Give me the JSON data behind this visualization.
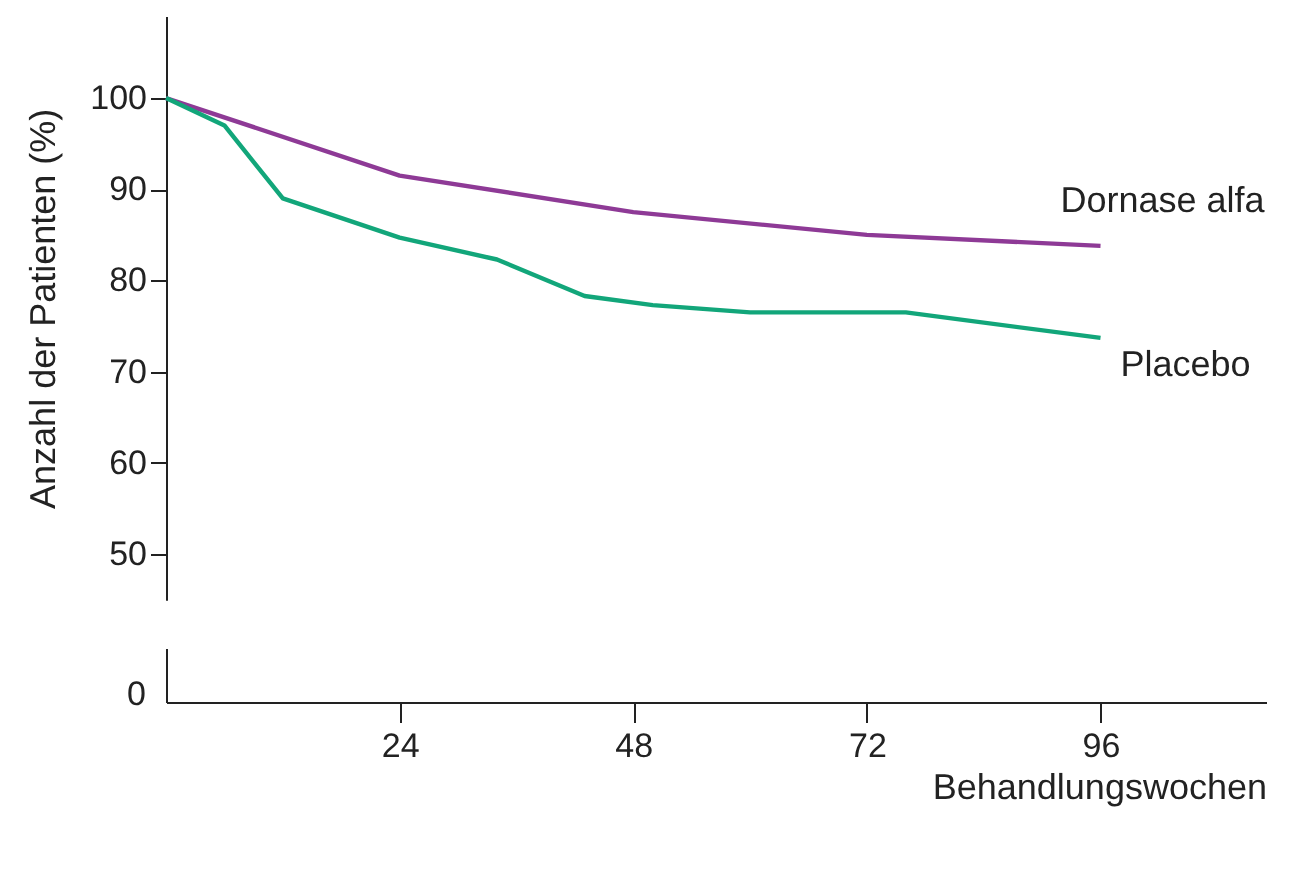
{
  "chart_data": {
    "type": "line",
    "ylabel": "Anzahl der Patienten (%)",
    "xlabel": "Behandlungswochen",
    "xlim": [
      0,
      113
    ],
    "ylim": [
      45,
      109
    ],
    "xticks": [
      24,
      48,
      72,
      96
    ],
    "yticks": [
      50,
      60,
      70,
      80,
      90,
      100
    ],
    "grid": false,
    "legend": false,
    "annotations": [
      "0"
    ],
    "series": [
      {
        "name": "Dornase alfa",
        "color": "#8e3a96",
        "x": [
          0,
          24,
          48,
          72,
          96
        ],
        "values": [
          100,
          91.5,
          87.5,
          85,
          83.8
        ]
      },
      {
        "name": "Placebo",
        "color": "#12a67a",
        "x": [
          0,
          6,
          12,
          24,
          34,
          43,
          50,
          60,
          76,
          96
        ],
        "values": [
          100,
          97,
          89,
          84.7,
          82.3,
          78.3,
          77.3,
          76.5,
          76.5,
          73.7
        ]
      }
    ]
  }
}
